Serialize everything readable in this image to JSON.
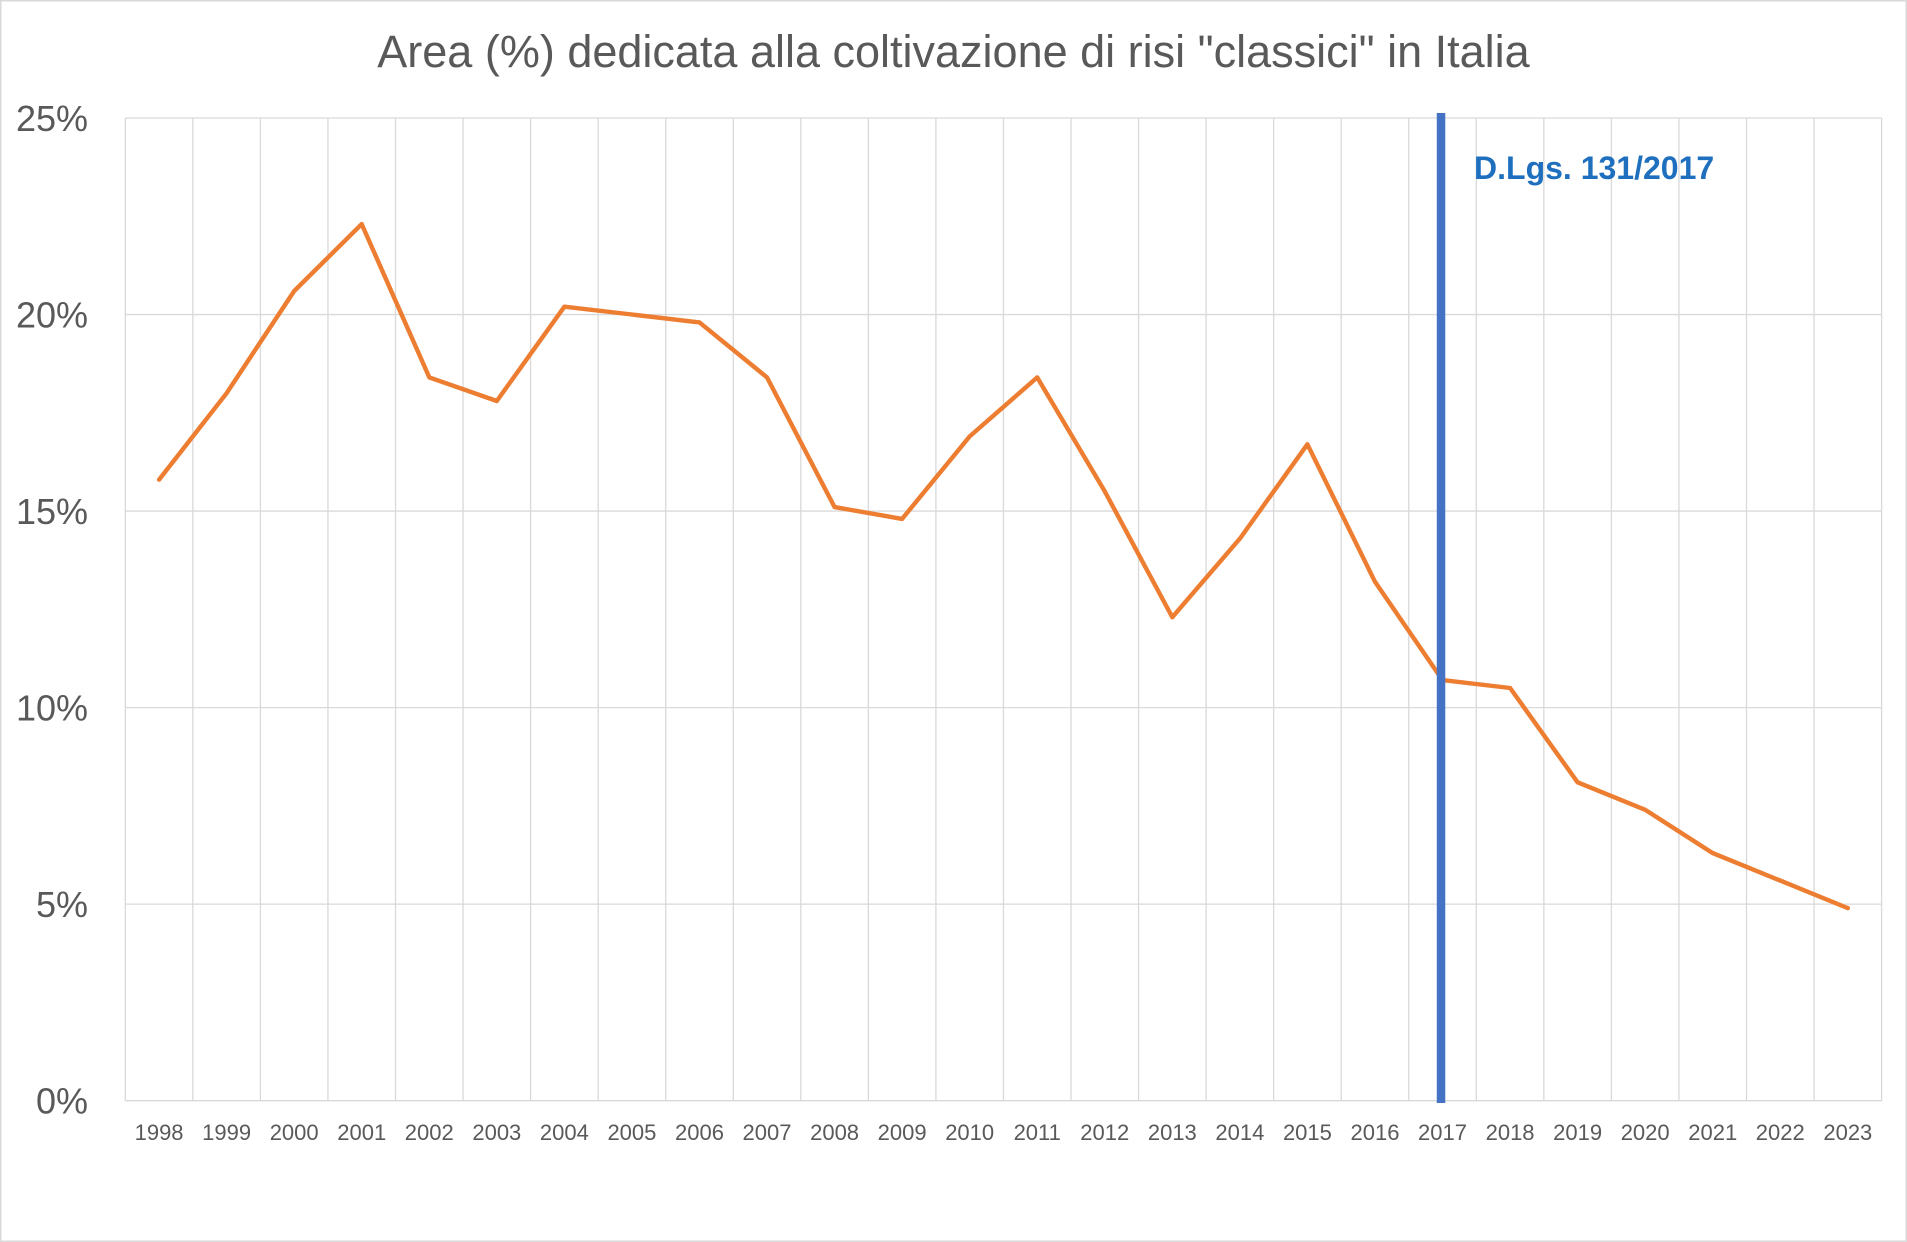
{
  "chart_data": {
    "type": "line",
    "title": "Area (%) dedicata alla coltivazione di risi \"classici\" in Italia",
    "categories": [
      "1998",
      "1999",
      "2000",
      "2001",
      "2002",
      "2003",
      "2004",
      "2005",
      "2006",
      "2007",
      "2008",
      "2009",
      "2010",
      "2011",
      "2012",
      "2013",
      "2014",
      "2015",
      "2016",
      "2017",
      "2018",
      "2019",
      "2020",
      "2021",
      "2022",
      "2023"
    ],
    "series": [
      {
        "values": [
          15.8,
          18.0,
          20.6,
          22.3,
          18.4,
          17.8,
          20.2,
          20.0,
          19.8,
          18.4,
          15.1,
          14.8,
          16.9,
          18.4,
          15.5,
          12.3,
          14.3,
          16.7,
          13.2,
          10.7,
          10.5,
          8.1,
          7.4,
          6.3,
          5.6,
          4.9
        ],
        "color": "#ED7D31"
      }
    ],
    "ylim": [
      0,
      25
    ],
    "yticks": [
      0,
      5,
      10,
      15,
      20,
      25
    ],
    "ytick_labels": [
      "0%",
      "5%",
      "10%",
      "15%",
      "20%",
      "25%"
    ],
    "grid": {
      "horizontal": true,
      "vertical": true
    },
    "annotations": [
      {
        "x": 2017,
        "label": "D.Lgs. 131/2017",
        "line_color": "#4472C4",
        "label_color": "#1F6FBF"
      }
    ]
  },
  "colors": {
    "text": "#595959",
    "grid": "#D9D9D9",
    "background": "#FFFFFF"
  }
}
